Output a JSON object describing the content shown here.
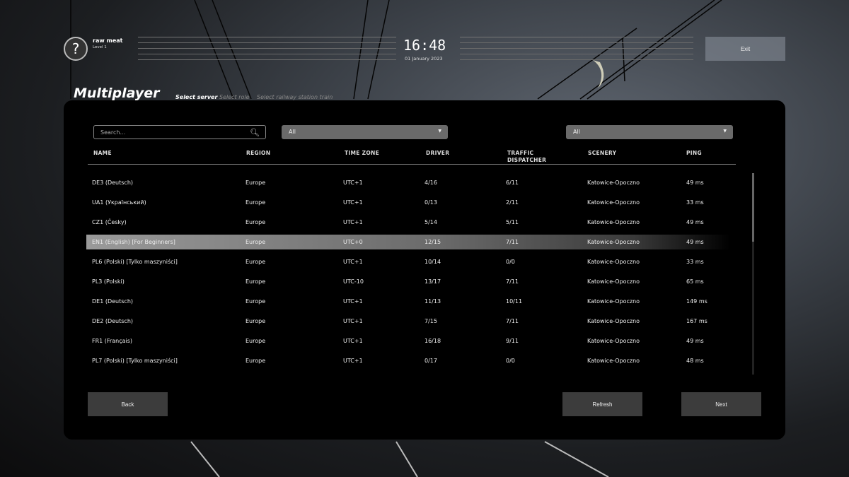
{
  "user": {
    "name": "raw meat",
    "level": "Level 1",
    "avatar_icon": "question-mark-icon"
  },
  "clock": {
    "time": "16:48",
    "date": "01 January 2023"
  },
  "header": {
    "exit_label": "Exit",
    "title": "Multiplayer",
    "steps": [
      "Select server",
      "Select role",
      "Select railway station train"
    ],
    "active_step": 0
  },
  "filters": {
    "search_placeholder": "Search...",
    "region_filter": "All",
    "scenery_filter": "All"
  },
  "table": {
    "columns": [
      "NAME",
      "REGION",
      "TIME ZONE",
      "DRIVER",
      "TRAFFIC DISPATCHER",
      "SCENERY",
      "PING"
    ],
    "selected_index": 3,
    "rows": [
      [
        "DE3 (Deutsch)",
        "Europe",
        "UTC+1",
        "4/16",
        "6/11",
        "Katowice-Opoczno",
        "49 ms"
      ],
      [
        "UA1 (Український)",
        "Europe",
        "UTC+1",
        "0/13",
        "2/11",
        "Katowice-Opoczno",
        "33 ms"
      ],
      [
        "CZ1 (Česky)",
        "Europe",
        "UTC+1",
        "5/14",
        "5/11",
        "Katowice-Opoczno",
        "49 ms"
      ],
      [
        "EN1 (English) [For Beginners]",
        "Europe",
        "UTC+0",
        "12/15",
        "7/11",
        "Katowice-Opoczno",
        "49 ms"
      ],
      [
        "PL6 (Polski) [Tylko maszyniści]",
        "Europe",
        "UTC+1",
        "10/14",
        "0/0",
        "Katowice-Opoczno",
        "33 ms"
      ],
      [
        "PL3 (Polski)",
        "Europe",
        "UTC-10",
        "13/17",
        "7/11",
        "Katowice-Opoczno",
        "65 ms"
      ],
      [
        "DE1 (Deutsch)",
        "Europe",
        "UTC+1",
        "11/13",
        "10/11",
        "Katowice-Opoczno",
        "149 ms"
      ],
      [
        "DE2 (Deutsch)",
        "Europe",
        "UTC+1",
        "7/15",
        "7/11",
        "Katowice-Opoczno",
        "167 ms"
      ],
      [
        "FR1 (Français)",
        "Europe",
        "UTC+1",
        "16/18",
        "9/11",
        "Katowice-Opoczno",
        "49 ms"
      ],
      [
        "PL7 (Polski) [Tylko maszyniści]",
        "Europe",
        "UTC+1",
        "0/17",
        "0/0",
        "Katowice-Opoczno",
        "48 ms"
      ]
    ]
  },
  "buttons": {
    "back": "Back",
    "refresh": "Refresh",
    "next": "Next"
  }
}
